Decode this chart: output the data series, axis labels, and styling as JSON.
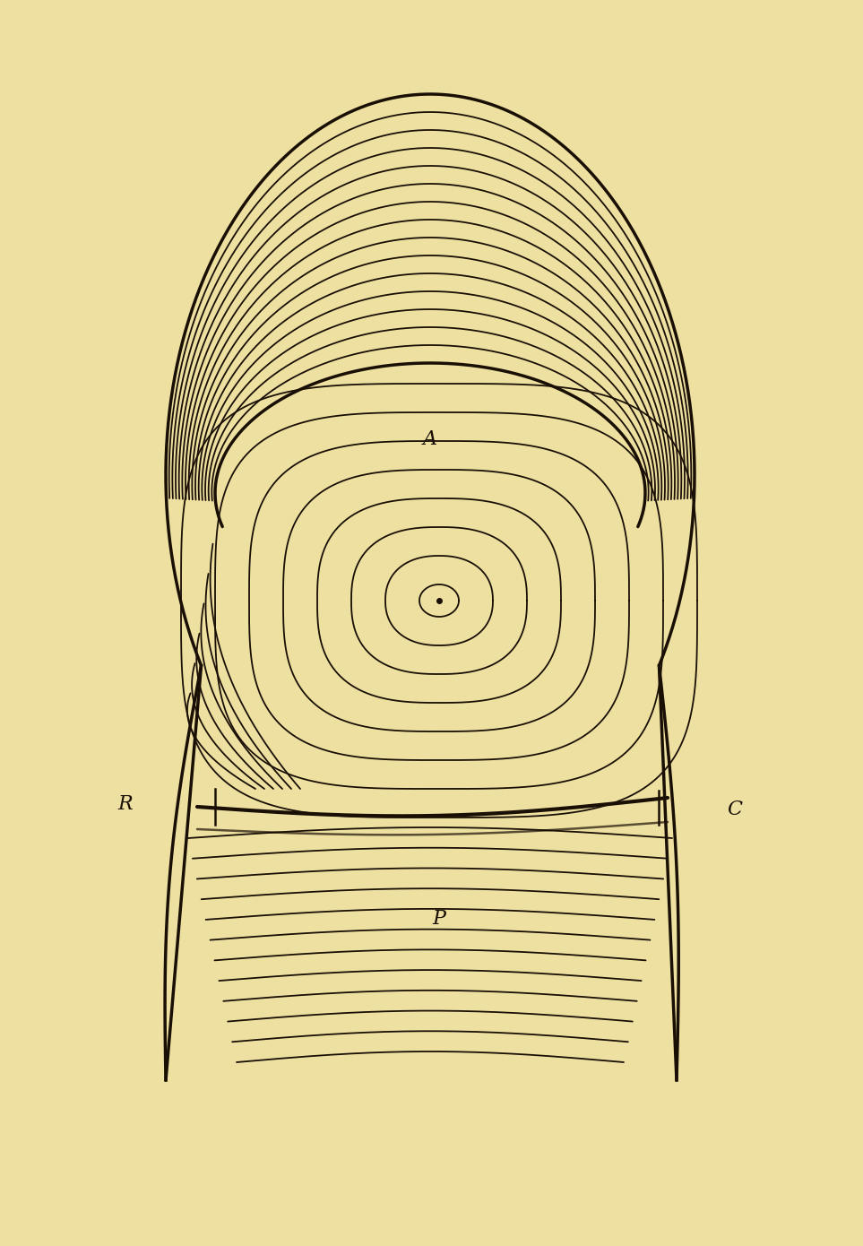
{
  "background_color": "#ede0a0",
  "line_color": "#1a0f05",
  "label_A": "A",
  "label_P": "P",
  "label_R": "R",
  "label_C": "C",
  "label_fontsize": 16,
  "fig_width": 9.63,
  "fig_height": 13.9,
  "dpi": 100
}
